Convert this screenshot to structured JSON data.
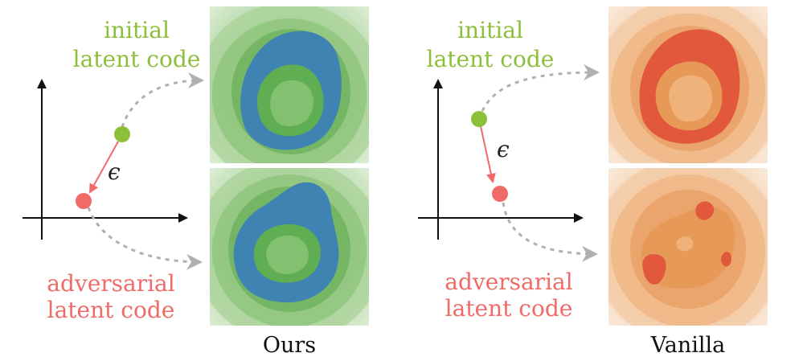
{
  "colors": {
    "initial": "#8cbf3a",
    "adversarial": "#f06a67",
    "arrow": "#f06a67",
    "dashed": "#b0b0b0",
    "axis": "#111111"
  },
  "panels": [
    {
      "id": "ours",
      "initial_label_line1": "initial",
      "initial_label_line2": "latent code",
      "adversarial_label_line1": "adversarial",
      "adversarial_label_line2": "latent code",
      "epsilon": "ϵ",
      "caption": "Ours",
      "palette": {
        "bg": "#eef6e8",
        "ring": "#3f83b3",
        "mid": "#5fae52",
        "inner": "#83c070"
      }
    },
    {
      "id": "vanilla",
      "initial_label_line1": "initial",
      "initial_label_line2": "latent code",
      "adversarial_label_line1": "adversarial",
      "adversarial_label_line2": "latent code",
      "epsilon": "ϵ",
      "caption": "Vanilla",
      "palette": {
        "bg": "#fbf0e6",
        "ring": "#e2583c",
        "mid": "#e79a57",
        "inner": "#efb27a"
      }
    }
  ]
}
